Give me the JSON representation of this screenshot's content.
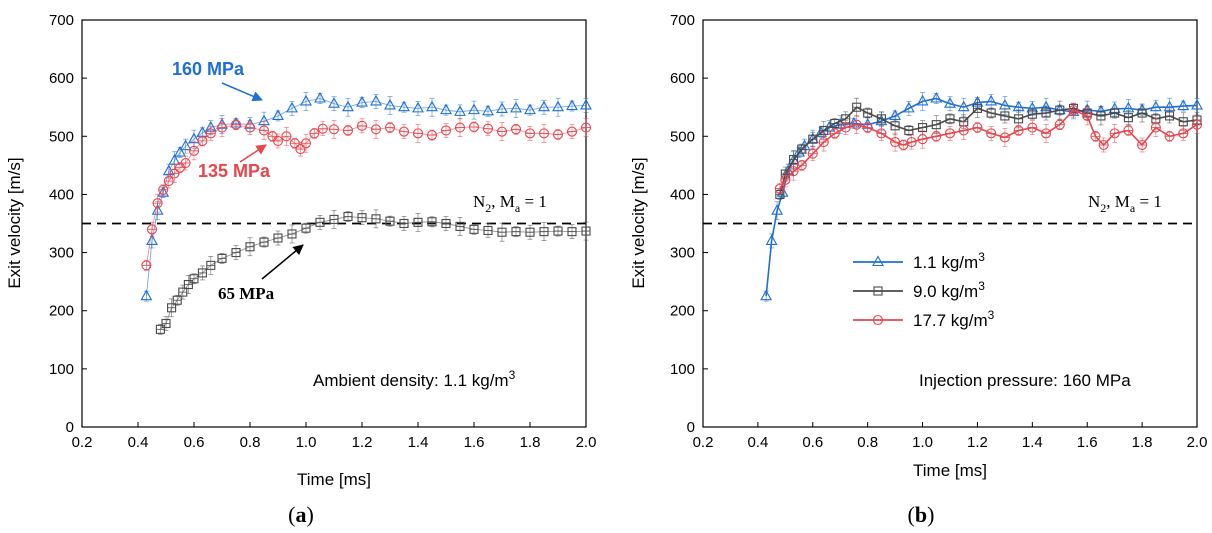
{
  "chart_data": [
    {
      "panel": "a",
      "panel_label": {
        "open": "(",
        "letter": "a",
        "close": ")"
      },
      "type": "line",
      "xlabel": "Time [ms]",
      "ylabel": "Exit velocity [m/s]",
      "xlim": [
        0.2,
        2.0
      ],
      "ylim": [
        0,
        700
      ],
      "xticks": [
        "0.2",
        "0.4",
        "0.6",
        "0.8",
        "1.0",
        "1.2",
        "1.4",
        "1.6",
        "1.8",
        "2.0"
      ],
      "yticks": [
        "0",
        "100",
        "200",
        "300",
        "400",
        "500",
        "600",
        "700"
      ],
      "reference_line": {
        "y": 350,
        "style": "dashed",
        "label_main": "N",
        "label_sub1": "2",
        "label_mid": ", M",
        "label_sub2": "a",
        "label_end": " = 1"
      },
      "annotation_box": {
        "text": "Ambient density: 1.1 kg/m",
        "sup": "3"
      },
      "callouts": [
        {
          "text": "160 MPa",
          "color": "#1f6fd6"
        },
        {
          "text": "135 MPa",
          "color": "#e8454d"
        },
        {
          "text": "65 MPa",
          "color": "#000000"
        }
      ],
      "series": [
        {
          "name": "160 MPa",
          "color": "#1f6fd6",
          "marker": "triangle",
          "points": [
            [
              0.43,
              225
            ],
            [
              0.45,
              320
            ],
            [
              0.47,
              372
            ],
            [
              0.49,
              403
            ],
            [
              0.51,
              440
            ],
            [
              0.53,
              458
            ],
            [
              0.55,
              472
            ],
            [
              0.57,
              483
            ],
            [
              0.6,
              495
            ],
            [
              0.63,
              506
            ],
            [
              0.66,
              515
            ],
            [
              0.7,
              520
            ],
            [
              0.75,
              522
            ],
            [
              0.8,
              520
            ],
            [
              0.85,
              526
            ],
            [
              0.9,
              535
            ],
            [
              0.95,
              548
            ],
            [
              1.0,
              560
            ],
            [
              1.05,
              565
            ],
            [
              1.1,
              556
            ],
            [
              1.15,
              550
            ],
            [
              1.2,
              558
            ],
            [
              1.25,
              560
            ],
            [
              1.3,
              553
            ],
            [
              1.35,
              550
            ],
            [
              1.4,
              548
            ],
            [
              1.45,
              550
            ],
            [
              1.5,
              545
            ],
            [
              1.55,
              542
            ],
            [
              1.6,
              545
            ],
            [
              1.65,
              543
            ],
            [
              1.7,
              547
            ],
            [
              1.75,
              548
            ],
            [
              1.8,
              545
            ],
            [
              1.85,
              550
            ],
            [
              1.9,
              550
            ],
            [
              1.95,
              552
            ],
            [
              2.0,
              553
            ]
          ]
        },
        {
          "name": "135 MPa",
          "color": "#e8454d",
          "marker": "circle",
          "points": [
            [
              0.43,
              278
            ],
            [
              0.45,
              340
            ],
            [
              0.47,
              385
            ],
            [
              0.49,
              408
            ],
            [
              0.51,
              423
            ],
            [
              0.53,
              436
            ],
            [
              0.55,
              446
            ],
            [
              0.57,
              454
            ],
            [
              0.6,
              475
            ],
            [
              0.63,
              492
            ],
            [
              0.66,
              505
            ],
            [
              0.7,
              515
            ],
            [
              0.75,
              520
            ],
            [
              0.8,
              515
            ],
            [
              0.85,
              510
            ],
            [
              0.88,
              500
            ],
            [
              0.9,
              492
            ],
            [
              0.93,
              500
            ],
            [
              0.96,
              488
            ],
            [
              0.98,
              478
            ],
            [
              1.0,
              488
            ],
            [
              1.03,
              505
            ],
            [
              1.06,
              513
            ],
            [
              1.1,
              512
            ],
            [
              1.15,
              510
            ],
            [
              1.2,
              518
            ],
            [
              1.25,
              512
            ],
            [
              1.3,
              515
            ],
            [
              1.35,
              508
            ],
            [
              1.4,
              505
            ],
            [
              1.45,
              502
            ],
            [
              1.5,
              510
            ],
            [
              1.55,
              515
            ],
            [
              1.6,
              516
            ],
            [
              1.65,
              513
            ],
            [
              1.7,
              508
            ],
            [
              1.75,
              512
            ],
            [
              1.8,
              505
            ],
            [
              1.85,
              505
            ],
            [
              1.9,
              503
            ],
            [
              1.95,
              508
            ],
            [
              2.0,
              515
            ]
          ]
        },
        {
          "name": "65 MPa",
          "color": "#4a4a4a",
          "marker": "square",
          "points": [
            [
              0.48,
              168
            ],
            [
              0.5,
              178
            ],
            [
              0.52,
              205
            ],
            [
              0.54,
              218
            ],
            [
              0.56,
              232
            ],
            [
              0.58,
              245
            ],
            [
              0.6,
              255
            ],
            [
              0.63,
              265
            ],
            [
              0.66,
              278
            ],
            [
              0.7,
              290
            ],
            [
              0.75,
              300
            ],
            [
              0.8,
              310
            ],
            [
              0.85,
              318
            ],
            [
              0.9,
              325
            ],
            [
              0.95,
              332
            ],
            [
              1.0,
              342
            ],
            [
              1.05,
              352
            ],
            [
              1.1,
              357
            ],
            [
              1.15,
              362
            ],
            [
              1.2,
              360
            ],
            [
              1.25,
              358
            ],
            [
              1.3,
              354
            ],
            [
              1.35,
              350
            ],
            [
              1.4,
              352
            ],
            [
              1.45,
              353
            ],
            [
              1.5,
              350
            ],
            [
              1.55,
              345
            ],
            [
              1.6,
              340
            ],
            [
              1.65,
              338
            ],
            [
              1.7,
              335
            ],
            [
              1.75,
              336
            ],
            [
              1.8,
              335
            ],
            [
              1.85,
              336
            ],
            [
              1.9,
              337
            ],
            [
              1.95,
              336
            ],
            [
              2.0,
              337
            ]
          ]
        }
      ]
    },
    {
      "panel": "b",
      "panel_label": {
        "open": "(",
        "letter": "b",
        "close": ")"
      },
      "type": "line",
      "xlabel": "Time [ms]",
      "ylabel": "Exit velocity [m/s]",
      "xlim": [
        0.2,
        2.0
      ],
      "ylim": [
        0,
        700
      ],
      "xticks": [
        "0.2",
        "0.4",
        "0.6",
        "0.8",
        "1.0",
        "1.2",
        "1.4",
        "1.6",
        "1.8",
        "2.0"
      ],
      "yticks": [
        "0",
        "100",
        "200",
        "300",
        "400",
        "500",
        "600",
        "700"
      ],
      "reference_line": {
        "y": 350,
        "style": "dashed",
        "label_main": "N",
        "label_sub1": "2",
        "label_mid": ", M",
        "label_sub2": "a",
        "label_end": " = 1"
      },
      "annotation_box": {
        "text": "Injection pressure: 160 MPa"
      },
      "legend": [
        {
          "label": "1.1 kg/m",
          "sup": "3",
          "color": "#1f6fd6",
          "marker": "triangle"
        },
        {
          "label": "9.0 kg/m",
          "sup": "3",
          "color": "#4a4a4a",
          "marker": "square"
        },
        {
          "label": "17.7 kg/m",
          "sup": "3",
          "color": "#e8454d",
          "marker": "circle"
        }
      ],
      "series": [
        {
          "name": "1.1 kg/m3",
          "color": "#1f6fd6",
          "marker": "triangle",
          "points": [
            [
              0.43,
              225
            ],
            [
              0.45,
              320
            ],
            [
              0.47,
              372
            ],
            [
              0.49,
              403
            ],
            [
              0.51,
              440
            ],
            [
              0.53,
              458
            ],
            [
              0.55,
              472
            ],
            [
              0.57,
              483
            ],
            [
              0.6,
              495
            ],
            [
              0.63,
              506
            ],
            [
              0.66,
              515
            ],
            [
              0.7,
              520
            ],
            [
              0.75,
              522
            ],
            [
              0.8,
              520
            ],
            [
              0.85,
              526
            ],
            [
              0.9,
              535
            ],
            [
              0.95,
              548
            ],
            [
              1.0,
              560
            ],
            [
              1.05,
              565
            ],
            [
              1.1,
              556
            ],
            [
              1.15,
              550
            ],
            [
              1.2,
              558
            ],
            [
              1.25,
              560
            ],
            [
              1.3,
              553
            ],
            [
              1.35,
              550
            ],
            [
              1.4,
              548
            ],
            [
              1.45,
              550
            ],
            [
              1.5,
              545
            ],
            [
              1.55,
              542
            ],
            [
              1.6,
              545
            ],
            [
              1.65,
              543
            ],
            [
              1.7,
              547
            ],
            [
              1.75,
              548
            ],
            [
              1.8,
              545
            ],
            [
              1.85,
              550
            ],
            [
              1.9,
              550
            ],
            [
              1.95,
              552
            ],
            [
              2.0,
              553
            ]
          ]
        },
        {
          "name": "9.0 kg/m3",
          "color": "#4a4a4a",
          "marker": "square",
          "points": [
            [
              0.48,
              400
            ],
            [
              0.5,
              435
            ],
            [
              0.53,
              460
            ],
            [
              0.56,
              478
            ],
            [
              0.6,
              495
            ],
            [
              0.64,
              510
            ],
            [
              0.68,
              522
            ],
            [
              0.72,
              530
            ],
            [
              0.76,
              550
            ],
            [
              0.8,
              540
            ],
            [
              0.85,
              530
            ],
            [
              0.9,
              518
            ],
            [
              0.95,
              510
            ],
            [
              1.0,
              515
            ],
            [
              1.05,
              520
            ],
            [
              1.1,
              530
            ],
            [
              1.15,
              525
            ],
            [
              1.2,
              548
            ],
            [
              1.25,
              540
            ],
            [
              1.3,
              535
            ],
            [
              1.35,
              530
            ],
            [
              1.4,
              538
            ],
            [
              1.45,
              540
            ],
            [
              1.5,
              545
            ],
            [
              1.55,
              548
            ],
            [
              1.6,
              540
            ],
            [
              1.65,
              535
            ],
            [
              1.7,
              540
            ],
            [
              1.75,
              532
            ],
            [
              1.8,
              540
            ],
            [
              1.85,
              530
            ],
            [
              1.9,
              535
            ],
            [
              1.95,
              525
            ],
            [
              2.0,
              528
            ]
          ]
        },
        {
          "name": "17.7 kg/m3",
          "color": "#e8454d",
          "marker": "circle",
          "points": [
            [
              0.48,
              410
            ],
            [
              0.5,
              425
            ],
            [
              0.53,
              440
            ],
            [
              0.56,
              450
            ],
            [
              0.6,
              470
            ],
            [
              0.64,
              490
            ],
            [
              0.68,
              505
            ],
            [
              0.72,
              515
            ],
            [
              0.76,
              520
            ],
            [
              0.8,
              515
            ],
            [
              0.85,
              505
            ],
            [
              0.9,
              490
            ],
            [
              0.93,
              485
            ],
            [
              0.96,
              490
            ],
            [
              1.0,
              495
            ],
            [
              1.05,
              500
            ],
            [
              1.1,
              505
            ],
            [
              1.15,
              510
            ],
            [
              1.2,
              515
            ],
            [
              1.25,
              505
            ],
            [
              1.3,
              498
            ],
            [
              1.35,
              510
            ],
            [
              1.4,
              515
            ],
            [
              1.45,
              505
            ],
            [
              1.5,
              520
            ],
            [
              1.55,
              545
            ],
            [
              1.6,
              535
            ],
            [
              1.63,
              500
            ],
            [
              1.66,
              485
            ],
            [
              1.7,
              505
            ],
            [
              1.75,
              510
            ],
            [
              1.8,
              485
            ],
            [
              1.85,
              515
            ],
            [
              1.9,
              500
            ],
            [
              1.95,
              505
            ],
            [
              2.0,
              520
            ]
          ]
        }
      ]
    }
  ]
}
